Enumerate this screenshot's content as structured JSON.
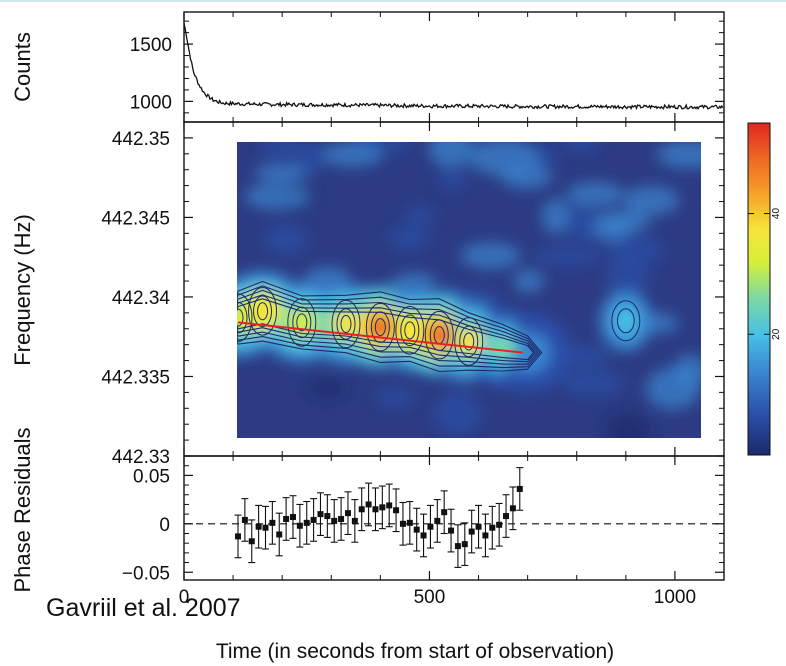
{
  "credit": "Gavriil et al. 2007",
  "chart_data": [
    {
      "type": "line",
      "panel": "counts",
      "ylabel": "Counts",
      "xlabel": "",
      "xlim": [
        0,
        1100
      ],
      "ylim": [
        820,
        1780
      ],
      "yticks": [
        1000,
        1500
      ],
      "ytick_labels": [
        "1000",
        "1500"
      ],
      "minor_yticks": [
        900,
        1100,
        1200,
        1300,
        1400,
        1600,
        1700
      ],
      "xticks": [
        0,
        500,
        1000
      ],
      "series": [
        {
          "x": [
            0,
            5,
            10,
            15,
            20,
            30,
            40,
            50,
            60,
            70,
            80,
            100,
            150,
            200,
            300,
            400,
            500,
            600,
            700,
            800,
            900,
            1000,
            1100
          ],
          "values": [
            1680,
            1580,
            1450,
            1340,
            1250,
            1150,
            1080,
            1040,
            1010,
            995,
            985,
            980,
            975,
            972,
            970,
            965,
            960,
            958,
            955,
            955,
            953,
            952,
            950
          ]
        }
      ]
    },
    {
      "type": "heatmap",
      "panel": "dynamic-power-spectrum",
      "ylabel": "Frequency (Hz)",
      "xlabel": "",
      "xlim": [
        0,
        1100
      ],
      "ylim": [
        442.33,
        442.351
      ],
      "yticks": [
        442.33,
        442.335,
        442.34,
        442.345,
        442.35
      ],
      "ytick_labels": [
        "442.33",
        "442.335",
        "442.34",
        "442.345",
        "442.35"
      ],
      "minor_yticks": [
        442.331,
        442.332,
        442.333,
        442.334,
        442.336,
        442.337,
        442.338,
        442.339,
        442.341,
        442.342,
        442.343,
        442.344,
        442.346,
        442.347,
        442.348,
        442.349
      ],
      "xticks": [
        0,
        500,
        1000
      ],
      "image_extent": {
        "x": [
          110,
          1060
        ],
        "y": [
          442.3307,
          442.3507
        ]
      },
      "power_ridge": [
        {
          "t": 110,
          "f": 442.3387,
          "p": 30
        },
        {
          "t": 160,
          "f": 442.3391,
          "p": 36
        },
        {
          "t": 240,
          "f": 442.3384,
          "p": 30
        },
        {
          "t": 330,
          "f": 442.3383,
          "p": 34
        },
        {
          "t": 400,
          "f": 442.3381,
          "p": 46
        },
        {
          "t": 460,
          "f": 442.3379,
          "p": 38
        },
        {
          "t": 520,
          "f": 442.3376,
          "p": 48
        },
        {
          "t": 580,
          "f": 442.3372,
          "p": 34
        },
        {
          "t": 650,
          "f": 442.3368,
          "p": 24
        },
        {
          "t": 700,
          "f": 442.3365,
          "p": 12
        }
      ],
      "secondary_peak": {
        "t": 900,
        "f": 442.3385,
        "p": 20
      },
      "fit_line": {
        "color": "#e8231e",
        "x": [
          110,
          690
        ],
        "y": [
          442.3384,
          442.3365
        ]
      },
      "colorbar": {
        "range": [
          0,
          55
        ],
        "tick_labels": [
          "20",
          "40"
        ],
        "colors": [
          "#1b2a6b",
          "#2b4ea8",
          "#3a86d0",
          "#47c0e6",
          "#7ad8a6",
          "#d6ef3a",
          "#f7e43a",
          "#f6a028",
          "#ec6424",
          "#e0281f"
        ]
      }
    },
    {
      "type": "scatter",
      "panel": "phase-residuals",
      "ylabel": "Phase Residuals",
      "xlabel": "Time (in seconds from start of observation)",
      "xlim": [
        0,
        1100
      ],
      "ylim": [
        -0.058,
        0.07
      ],
      "yticks": [
        -0.05,
        0,
        0.05
      ],
      "ytick_labels": [
        "−0.05",
        "0",
        "0.05"
      ],
      "minor_yticks": [
        -0.04,
        -0.03,
        -0.02,
        -0.01,
        0.01,
        0.02,
        0.03,
        0.04,
        0.06
      ],
      "xticks": [
        0,
        500,
        1000
      ],
      "xtick_labels": [
        "0",
        "500",
        "1000"
      ],
      "reference_line": 0,
      "series": [
        {
          "x": [
            110,
            124,
            138,
            152,
            166,
            180,
            194,
            208,
            222,
            236,
            250,
            264,
            278,
            292,
            306,
            320,
            334,
            348,
            362,
            376,
            390,
            404,
            418,
            432,
            446,
            460,
            474,
            488,
            502,
            516,
            530,
            544,
            558,
            572,
            586,
            600,
            614,
            628,
            642,
            656,
            670,
            684
          ],
          "values": [
            -0.013,
            0.004,
            -0.018,
            -0.003,
            -0.004,
            0.001,
            -0.011,
            0.005,
            0.007,
            -0.002,
            0.001,
            0.004,
            0.01,
            0.008,
            0.003,
            0.005,
            0.011,
            0.003,
            0.015,
            0.02,
            0.015,
            0.017,
            0.019,
            0.014,
            0.0,
            0.001,
            -0.006,
            -0.012,
            -0.003,
            0.003,
            0.012,
            -0.007,
            -0.023,
            -0.021,
            -0.008,
            -0.003,
            -0.012,
            -0.004,
            -0.001,
            0.008,
            0.016,
            0.036
          ],
          "error": 0.022
        }
      ]
    }
  ]
}
